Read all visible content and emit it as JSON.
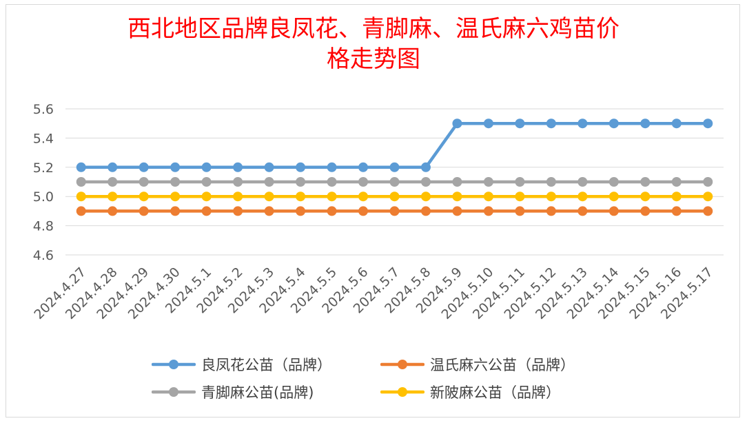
{
  "chart_data": {
    "type": "line",
    "title_lines": [
      "西北地区品牌良凤花、青脚麻、温氏麻六鸡苗价",
      "格走势图"
    ],
    "xlabel": "",
    "ylabel": "",
    "ylim": [
      4.6,
      5.6
    ],
    "yticks": [
      "4.6",
      "4.8",
      "5.0",
      "5.2",
      "5.4",
      "5.6"
    ],
    "grid": true,
    "legend_position": "bottom",
    "categories": [
      "2024.4.27",
      "2024.4.28",
      "2024.4.29",
      "2024.4.30",
      "2024.5.1",
      "2024.5.2",
      "2024.5.3",
      "2024.5.4",
      "2024.5.5",
      "2024.5.6",
      "2024.5.7",
      "2024.5.8",
      "2024.5.9",
      "2024.5.10",
      "2024.5.11",
      "2024.5.12",
      "2024.5.13",
      "2024.5.14",
      "2024.5.15",
      "2024.5.16",
      "2024.5.17"
    ],
    "series": [
      {
        "name": "良凤花公苗（品牌）",
        "color": "#5b9bd5",
        "values": [
          5.2,
          5.2,
          5.2,
          5.2,
          5.2,
          5.2,
          5.2,
          5.2,
          5.2,
          5.2,
          5.2,
          5.2,
          5.5,
          5.5,
          5.5,
          5.5,
          5.5,
          5.5,
          5.5,
          5.5,
          5.5
        ]
      },
      {
        "name": "温氏麻六公苗（品牌）",
        "color": "#ed7d31",
        "values": [
          4.9,
          4.9,
          4.9,
          4.9,
          4.9,
          4.9,
          4.9,
          4.9,
          4.9,
          4.9,
          4.9,
          4.9,
          4.9,
          4.9,
          4.9,
          4.9,
          4.9,
          4.9,
          4.9,
          4.9,
          4.9
        ]
      },
      {
        "name": "青脚麻公苗(品牌)",
        "color": "#a5a5a5",
        "values": [
          5.1,
          5.1,
          5.1,
          5.1,
          5.1,
          5.1,
          5.1,
          5.1,
          5.1,
          5.1,
          5.1,
          5.1,
          5.1,
          5.1,
          5.1,
          5.1,
          5.1,
          5.1,
          5.1,
          5.1,
          5.1
        ]
      },
      {
        "name": "新陂麻公苗（品牌）",
        "color": "#ffc000",
        "values": [
          5.0,
          5.0,
          5.0,
          5.0,
          5.0,
          5.0,
          5.0,
          5.0,
          5.0,
          5.0,
          5.0,
          5.0,
          5.0,
          5.0,
          5.0,
          5.0,
          5.0,
          5.0,
          5.0,
          5.0,
          5.0
        ]
      }
    ],
    "draw_order": [
      1,
      0,
      2,
      3
    ],
    "legend_order": [
      0,
      1,
      2,
      3
    ]
  }
}
